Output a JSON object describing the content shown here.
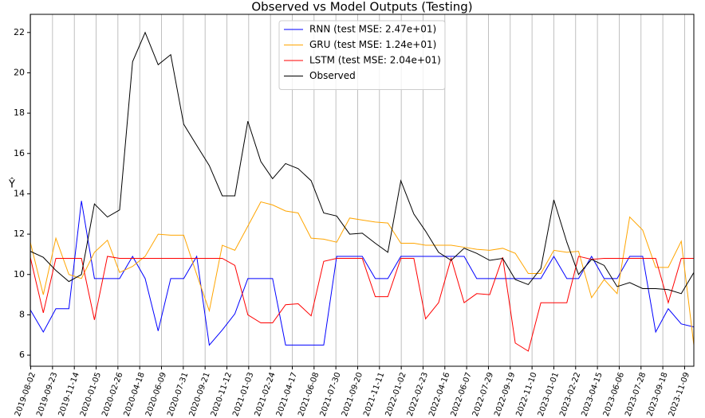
{
  "chart_data": {
    "type": "line",
    "title": "Observed vs Model Outputs (Testing)",
    "y_label": "Ŷ",
    "x": [
      "2019-08",
      "2019-09",
      "2019-10",
      "2019-11",
      "2019-12",
      "2020-01",
      "2020-02",
      "2020-03",
      "2020-04",
      "2020-05",
      "2020-06",
      "2020-07",
      "2020-08",
      "2020-09",
      "2020-10",
      "2020-11",
      "2020-12",
      "2021-01",
      "2021-02",
      "2021-03",
      "2021-04",
      "2021-05",
      "2021-06",
      "2021-07",
      "2021-08",
      "2021-09",
      "2021-10",
      "2021-11",
      "2021-12",
      "2022-01",
      "2022-02",
      "2022-03",
      "2022-04",
      "2022-05",
      "2022-06",
      "2022-07",
      "2022-08",
      "2022-09",
      "2022-10",
      "2022-11",
      "2022-12",
      "2023-01",
      "2023-02",
      "2023-03",
      "2023-04",
      "2023-05",
      "2023-06",
      "2023-07",
      "2023-08",
      "2023-09",
      "2023-10",
      "2023-11",
      "2023-12"
    ],
    "series": [
      {
        "name": "RNN (test MSE: 2.47e+01)",
        "color": "#0000ff",
        "values": [
          8.25,
          7.15,
          8.3,
          8.3,
          13.65,
          9.8,
          9.8,
          9.8,
          10.9,
          9.8,
          7.2,
          9.8,
          9.8,
          10.9,
          6.5,
          7.25,
          8.05,
          9.8,
          9.8,
          9.8,
          6.5,
          6.5,
          6.5,
          6.5,
          10.9,
          10.9,
          10.9,
          9.8,
          9.8,
          10.9,
          10.9,
          10.9,
          10.9,
          10.9,
          10.9,
          9.8,
          9.8,
          9.8,
          9.8,
          9.8,
          9.8,
          10.9,
          9.8,
          9.8,
          10.9,
          9.8,
          9.8,
          10.9,
          10.9,
          7.15,
          8.3,
          7.55,
          7.4
        ]
      },
      {
        "name": "GRU (test MSE: 1.24e+01)",
        "color": "#ffa500",
        "values": [
          11.6,
          9.0,
          11.8,
          10.0,
          9.8,
          11.1,
          11.7,
          10.1,
          10.4,
          10.9,
          12.0,
          11.95,
          11.95,
          10.0,
          8.2,
          11.45,
          11.2,
          12.4,
          13.6,
          13.45,
          13.15,
          13.05,
          11.8,
          11.75,
          11.6,
          12.8,
          12.7,
          12.6,
          12.55,
          11.55,
          11.55,
          11.45,
          11.45,
          11.45,
          11.35,
          11.25,
          11.2,
          11.3,
          11.05,
          10.05,
          10.05,
          11.2,
          11.1,
          11.15,
          8.85,
          9.75,
          9.05,
          12.85,
          12.2,
          10.35,
          10.35,
          11.65,
          6.5
        ]
      },
      {
        "name": "LSTM (test MSE: 2.04e+01)",
        "color": "#ff0000",
        "values": [
          10.85,
          8.1,
          10.8,
          10.8,
          10.8,
          7.75,
          10.9,
          10.8,
          10.8,
          10.8,
          10.8,
          10.8,
          10.8,
          10.8,
          10.8,
          10.8,
          10.45,
          8.0,
          7.6,
          7.6,
          8.5,
          8.55,
          7.95,
          10.65,
          10.8,
          10.8,
          10.8,
          8.9,
          8.9,
          10.8,
          10.8,
          7.8,
          8.6,
          10.8,
          8.6,
          9.05,
          9.0,
          10.85,
          6.6,
          6.2,
          8.6,
          8.6,
          8.6,
          10.9,
          10.75,
          10.8,
          10.8,
          10.8,
          10.8,
          10.8,
          8.6,
          10.8,
          10.8
        ]
      },
      {
        "name": "Observed",
        "color": "#000000",
        "values": [
          11.15,
          10.85,
          10.2,
          9.65,
          10.0,
          13.5,
          12.85,
          13.2,
          20.55,
          22.0,
          20.4,
          20.9,
          17.45,
          16.4,
          15.4,
          13.9,
          13.9,
          17.6,
          15.6,
          14.75,
          15.5,
          15.25,
          14.65,
          13.05,
          12.9,
          12.0,
          12.05,
          11.55,
          11.1,
          14.65,
          13.0,
          12.15,
          11.1,
          10.7,
          11.3,
          11.05,
          10.7,
          10.8,
          9.75,
          9.5,
          10.3,
          13.7,
          11.6,
          10.0,
          10.75,
          10.45,
          9.4,
          9.6,
          9.3,
          9.3,
          9.25,
          9.05,
          10.1
        ]
      }
    ],
    "xlim": [
      "2019-08",
      "2023-12"
    ],
    "xticks": [
      "2019-08-02",
      "2019-09-23",
      "2019-11-14",
      "2020-01-05",
      "2020-02-26",
      "2020-04-18",
      "2020-06-09",
      "2020-07-31",
      "2020-09-21",
      "2020-11-12",
      "2021-01-03",
      "2021-02-24",
      "2021-04-17",
      "2021-06-08",
      "2021-07-30",
      "2021-09-20",
      "2021-11-11",
      "2022-01-02",
      "2022-02-23",
      "2022-04-16",
      "2022-06-07",
      "2022-07-29",
      "2022-09-19",
      "2022-11-10",
      "2023-01-01",
      "2023-02-22",
      "2023-04-15",
      "2023-06-06",
      "2023-07-28",
      "2023-09-18",
      "2023-11-09"
    ],
    "ylim": [
      5.45,
      22.9
    ],
    "yticks": [
      6,
      8,
      10,
      12,
      14,
      16,
      18,
      20,
      22
    ],
    "grid": "x",
    "legend": "upper center"
  }
}
